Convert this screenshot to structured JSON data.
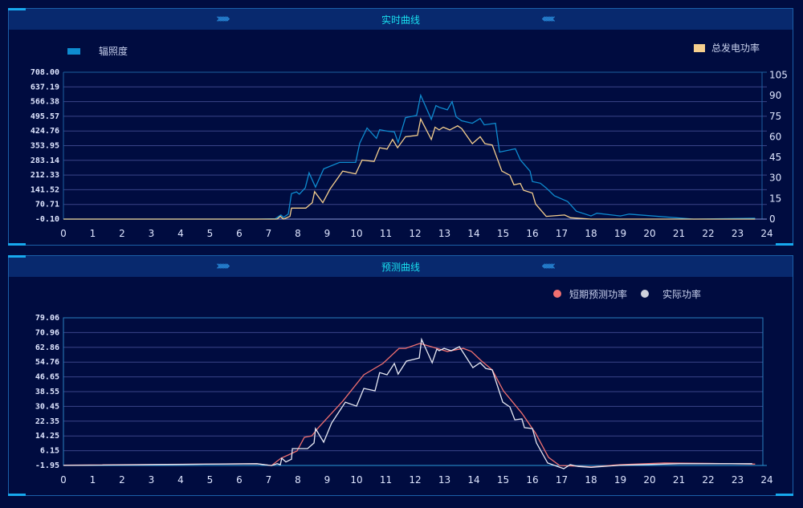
{
  "panels": [
    {
      "title": "实时曲线"
    },
    {
      "title": "预测曲线"
    }
  ],
  "colors": {
    "background": "#000c40",
    "titlebar": "#08296e",
    "title_text": "#19e0f0",
    "irradiance": "#0e8cd0",
    "total_power": "#f5cf8e",
    "forecast": "#f07070",
    "actual": "#e8eaf4"
  },
  "chart_data": [
    {
      "type": "line",
      "title": "实时曲线",
      "x_ticks": [
        "0",
        "1",
        "2",
        "3",
        "4",
        "5",
        "6",
        "7",
        "8",
        "9",
        "10",
        "11",
        "12",
        "13",
        "14",
        "15",
        "16",
        "17",
        "18",
        "19",
        "20",
        "21",
        "22",
        "23",
        "24"
      ],
      "xlim": [
        0,
        24
      ],
      "y_left_ticks": [
        "708.00",
        "637.19",
        "566.38",
        "495.57",
        "424.76",
        "353.95",
        "283.14",
        "212.33",
        "141.52",
        "70.71",
        "-0.10"
      ],
      "y_left_lim": [
        -0.1,
        708.0
      ],
      "y_right_ticks": [
        "105",
        "90",
        "75",
        "60",
        "45",
        "30",
        "15",
        "0"
      ],
      "y_right_lim": [
        0,
        105
      ],
      "grid": true,
      "legend": "top",
      "series": [
        {
          "name": "辐照度",
          "axis": "left",
          "color": "#0e8cd0",
          "legend_shape": "rect",
          "legend_position": "top-left",
          "x": [
            0,
            6.6,
            7.23,
            7.42,
            7.51,
            7.67,
            7.78,
            7.95,
            8.05,
            8.25,
            8.38,
            8.6,
            8.88,
            9.42,
            9.97,
            10.11,
            10.36,
            10.68,
            10.79,
            11.04,
            11.29,
            11.42,
            11.67,
            12.05,
            12.19,
            12.55,
            12.71,
            12.82,
            13.1,
            13.26,
            13.4,
            13.59,
            13.95,
            14.22,
            14.36,
            14.74,
            14.88,
            15.42,
            15.59,
            15.92,
            16.0,
            16.27,
            16.47,
            16.75,
            17.2,
            17.5,
            18.0,
            18.2,
            19.0,
            19.3,
            21.5,
            23.6
          ],
          "y": [
            0,
            0,
            2,
            20,
            8,
            24,
            123,
            131,
            120,
            150,
            223,
            154,
            242,
            273,
            273,
            366,
            439,
            389,
            431,
            424,
            420,
            370,
            489,
            500,
            597,
            481,
            547,
            539,
            527,
            566,
            493,
            474,
            462,
            485,
            454,
            462,
            323,
            339,
            285,
            231,
            181,
            173,
            150,
            112,
            85,
            38,
            15,
            28,
            15,
            24,
            0,
            4
          ]
        },
        {
          "name": "总发电功率",
          "axis": "right",
          "color": "#f5cf8e",
          "legend_shape": "rect",
          "legend_position": "top-right",
          "x": [
            0,
            6.6,
            7.29,
            7.4,
            7.51,
            7.73,
            7.78,
            8.27,
            8.49,
            8.57,
            8.85,
            9.1,
            9.53,
            9.97,
            10.19,
            10.6,
            10.79,
            11.04,
            11.23,
            11.4,
            11.67,
            12.08,
            12.19,
            12.55,
            12.68,
            12.82,
            12.96,
            13.18,
            13.45,
            13.59,
            13.95,
            14.22,
            14.38,
            14.63,
            14.96,
            15.23,
            15.37,
            15.59,
            15.7,
            16.0,
            16.11,
            16.47,
            17.1,
            17.3,
            18.0,
            23.6
          ],
          "y": [
            0,
            0,
            0,
            2,
            0,
            2,
            8,
            8,
            12,
            20,
            12,
            22,
            35,
            33,
            43,
            42,
            52,
            51,
            58,
            52,
            60,
            61,
            73,
            58,
            67,
            65,
            67,
            65,
            68,
            66,
            55,
            60,
            55,
            54,
            35,
            32,
            25,
            26,
            21,
            19,
            11,
            2,
            3,
            1,
            0,
            0
          ]
        }
      ]
    },
    {
      "type": "line",
      "title": "预测曲线",
      "x_ticks": [
        "0",
        "1",
        "2",
        "3",
        "4",
        "5",
        "6",
        "7",
        "8",
        "9",
        "10",
        "11",
        "12",
        "13",
        "14",
        "15",
        "16",
        "17",
        "18",
        "19",
        "20",
        "21",
        "22",
        "23",
        "24"
      ],
      "xlim": [
        0,
        24
      ],
      "y_ticks": [
        "79.06",
        "70.96",
        "62.86",
        "54.76",
        "46.65",
        "38.55",
        "30.45",
        "22.35",
        "14.25",
        "6.15",
        "-1.95"
      ],
      "ylim": [
        -1.95,
        79.06
      ],
      "grid": true,
      "legend": "top-right",
      "series": [
        {
          "name": "短期预测功率",
          "color": "#f07070",
          "legend_shape": "circle",
          "x": [
            0,
            6.6,
            7.1,
            7.42,
            7.78,
            7.97,
            8.22,
            8.47,
            8.71,
            9.53,
            10.25,
            10.9,
            11.45,
            11.67,
            12.16,
            12.63,
            13.1,
            13.64,
            13.92,
            14.27,
            14.63,
            15.01,
            15.64,
            16.11,
            16.55,
            16.93,
            17.56,
            18.0,
            19.0,
            20.5,
            22.0,
            23.6
          ],
          "y": [
            -1.8,
            -1.0,
            -2,
            2,
            4.6,
            6,
            13.5,
            14.3,
            19,
            33.3,
            47.8,
            54,
            62.3,
            62.3,
            65,
            62.8,
            60.6,
            62.3,
            60.6,
            55.3,
            50.5,
            39,
            26.7,
            15.7,
            2.5,
            -2,
            -2.3,
            -2.8,
            -1.5,
            -0.6,
            -0.8,
            -1.2
          ]
        },
        {
          "name": "实际功率",
          "color": "#e8eaf4",
          "legend_shape": "circle",
          "x": [
            0,
            6.6,
            7.1,
            7.29,
            7.4,
            7.45,
            7.59,
            7.78,
            7.81,
            8.33,
            8.55,
            8.6,
            8.88,
            9.15,
            9.62,
            10.0,
            10.25,
            10.63,
            10.79,
            11.04,
            11.29,
            11.42,
            11.7,
            12.14,
            12.22,
            12.58,
            12.74,
            12.82,
            12.99,
            13.23,
            13.51,
            13.97,
            14.22,
            14.41,
            14.63,
            14.99,
            15.23,
            15.4,
            15.64,
            15.73,
            16.0,
            16.14,
            16.52,
            17.07,
            17.29,
            17.56,
            18.0,
            19.0,
            21.0,
            23.5
          ],
          "y": [
            -1.9,
            -1,
            -2,
            -1,
            -1.5,
            2,
            0,
            1.5,
            7.3,
            7.3,
            10.4,
            18.3,
            10.8,
            21.4,
            32.8,
            30.6,
            40.3,
            39,
            49,
            47.8,
            54,
            48.2,
            55.3,
            57,
            67.2,
            54.4,
            61.9,
            61,
            62.3,
            61,
            63.2,
            51.7,
            54.4,
            51.3,
            50.5,
            32.8,
            30.2,
            23.1,
            23.6,
            18.8,
            18.3,
            10.4,
            -0.6,
            -3.7,
            -1.5,
            -2.5,
            -3,
            -1.8,
            -1,
            -1
          ]
        }
      ]
    }
  ]
}
